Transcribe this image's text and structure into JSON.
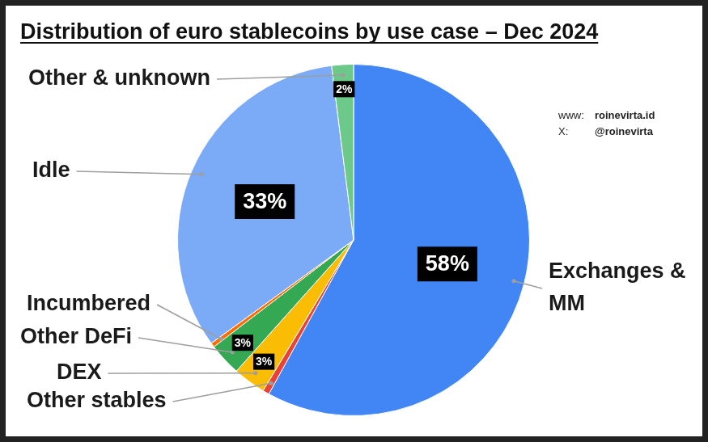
{
  "chart_data": {
    "type": "pie",
    "title": "Distribution of euro stablecoins by use case – Dec 2024",
    "categories": [
      "Exchanges & MM",
      "Other stables",
      "DEX",
      "Other DeFi",
      "Incumbered",
      "Idle",
      "Other & unknown"
    ],
    "values": [
      58,
      0.6,
      3,
      3,
      0.4,
      33,
      2
    ],
    "value_labels": [
      "58%",
      null,
      "3%",
      "3%",
      null,
      "33%",
      "2%"
    ],
    "colors": [
      "#4285f4",
      "#ea4335",
      "#fbbc04",
      "#34a853",
      "#ff6d01",
      "#7baaf7",
      "#6cc98a"
    ],
    "data_labels": true,
    "annotations": [
      [
        "www:",
        "roinevirta.id"
      ],
      [
        "X:",
        "@roinevirta"
      ]
    ]
  }
}
